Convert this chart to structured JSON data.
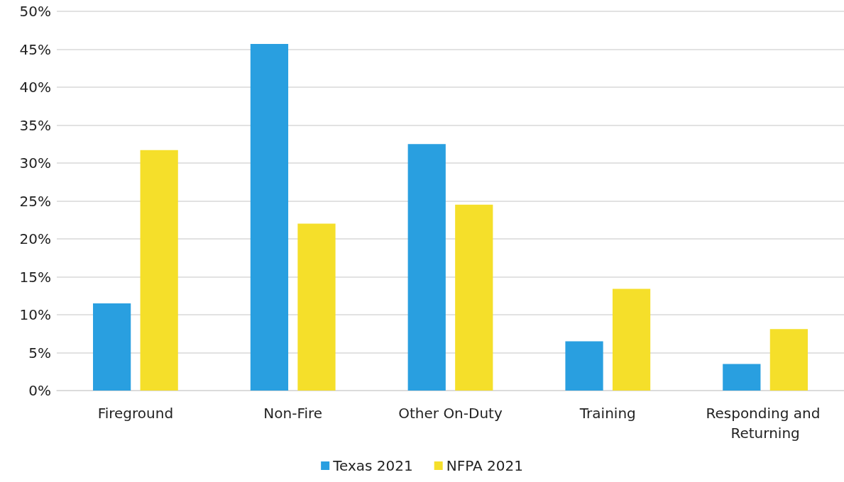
{
  "chart_data": {
    "type": "bar",
    "categories": [
      "Fireground",
      "Non-Fire",
      "Other On-Duty",
      "Training",
      "Responding and Returning"
    ],
    "series": [
      {
        "name": "Texas 2021",
        "color": "#299fe0",
        "values": [
          11.5,
          45.7,
          32.5,
          6.5,
          3.5
        ]
      },
      {
        "name": "NFPA 2021",
        "color": "#f5df2a",
        "values": [
          31.7,
          22.0,
          24.5,
          13.4,
          8.1
        ]
      }
    ],
    "ylim": [
      0,
      50
    ],
    "yticks": [
      {
        "value": 0,
        "label": "0%"
      },
      {
        "value": 5,
        "label": "5%"
      },
      {
        "value": 10,
        "label": "10%"
      },
      {
        "value": 15,
        "label": "15%"
      },
      {
        "value": 20,
        "label": "20%"
      },
      {
        "value": 25,
        "label": "25%"
      },
      {
        "value": 30,
        "label": "30%"
      },
      {
        "value": 35,
        "label": "35%"
      },
      {
        "value": 40,
        "label": "40%"
      },
      {
        "value": 45,
        "label": "45%"
      },
      {
        "value": 50,
        "label": "50%"
      }
    ],
    "grid": "y",
    "legend": "bottom"
  }
}
